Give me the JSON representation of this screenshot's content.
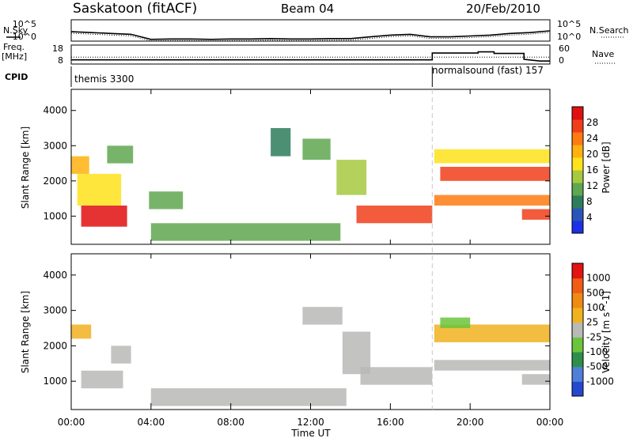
{
  "header": {
    "station": "Saskatoon (fitACF)",
    "beam": "Beam 04",
    "date": "20/Feb/2010"
  },
  "summary_panels": {
    "nsky": {
      "label": "N.Sky",
      "ticks": [
        "10^5",
        "10^0"
      ]
    },
    "nsearch": {
      "label": "N.Search",
      "ticks": [
        "10^5",
        "10^0"
      ]
    },
    "freq": {
      "label_line1": "Freq.",
      "label_line2": "[MHz]",
      "ticks": [
        "18",
        "8"
      ]
    },
    "nave": {
      "label": "Nave",
      "ticks": [
        "60",
        "0"
      ]
    },
    "cpid": {
      "label": "CPID",
      "segments": [
        {
          "name": "themis 3300",
          "start_hour": 0,
          "end_hour": 18.1
        },
        {
          "name": "normalsound (fast) 157",
          "start_hour": 18.1,
          "end_hour": 24
        }
      ]
    }
  },
  "axes": {
    "xlabel": "Time UT",
    "x_ticks": [
      "00:00",
      "04:00",
      "08:00",
      "12:00",
      "16:00",
      "20:00",
      "00:00"
    ],
    "ylabel": "Slant Range [km]",
    "y_ticks": [
      "1000",
      "2000",
      "3000",
      "4000"
    ]
  },
  "colorbars": {
    "power": {
      "label": "Power [dB]",
      "ticks": [
        "4",
        "8",
        "12",
        "16",
        "20",
        "24",
        "28"
      ],
      "colors": [
        "#1d2fe6",
        "#2a56b8",
        "#2d7d5c",
        "#5fa750",
        "#a6c93f",
        "#ffe21a",
        "#ffb10f",
        "#ff7b12",
        "#f03e1a",
        "#e00f10"
      ]
    },
    "velocity": {
      "label": "Velocity [m s^-1]",
      "ticks": [
        "1000",
        "500",
        "100",
        "25",
        "-25",
        "-100",
        "-500",
        "-1000"
      ],
      "colors": [
        "#2548cf",
        "#4f7fd6",
        "#2e8f4a",
        "#6cc43c",
        "#b9b9b6",
        "#f0b21e",
        "#ef8a13",
        "#f05c13",
        "#e21414"
      ]
    }
  },
  "chart_data": [
    {
      "type": "line",
      "title": "N.Sky / N.Search",
      "x_hours": [
        0,
        1,
        2,
        3,
        4,
        5,
        6,
        7,
        8,
        9,
        10,
        11,
        12,
        13,
        14,
        15,
        16,
        17,
        18,
        19,
        20,
        21,
        22,
        23,
        24
      ],
      "log_values": [
        2.2,
        2.0,
        1.8,
        1.6,
        0.4,
        0.5,
        0.5,
        0.4,
        0.5,
        0.5,
        0.6,
        0.5,
        0.5,
        0.6,
        0.6,
        1.0,
        1.4,
        1.6,
        1.0,
        1.0,
        1.2,
        1.4,
        1.8,
        2.0,
        2.4
      ],
      "ylim": [
        0,
        5
      ]
    },
    {
      "type": "line",
      "title": "Freq. / Nave",
      "x_hours": [
        0,
        18.1,
        18.1,
        20.4,
        20.4,
        21.2,
        21.2,
        22.7,
        22.7,
        23.5,
        24
      ],
      "freq_mhz": [
        10.2,
        10.2,
        13.8,
        13.8,
        14.4,
        14.4,
        13.6,
        13.6,
        10.5,
        9.6,
        9.6
      ],
      "nave_x_hours": [
        0,
        24
      ],
      "nave_values": [
        22,
        22
      ],
      "freq_ylim": [
        8,
        18
      ]
    },
    {
      "type": "heatmap",
      "title": "Power [dB]",
      "xlim_hours": [
        0,
        24
      ],
      "ylim_km": [
        200,
        4600
      ],
      "zlim": [
        0,
        30
      ],
      "regions": [
        {
          "x_hours": [
            0.0,
            0.9
          ],
          "y_km": [
            2200,
            2700
          ],
          "value": 18
        },
        {
          "x_hours": [
            0.5,
            2.8
          ],
          "y_km": [
            700,
            1300
          ],
          "value": 28
        },
        {
          "x_hours": [
            0.3,
            2.5
          ],
          "y_km": [
            1300,
            2200
          ],
          "value": 17
        },
        {
          "x_hours": [
            1.8,
            3.1
          ],
          "y_km": [
            2500,
            3000
          ],
          "value": 9
        },
        {
          "x_hours": [
            3.9,
            5.6
          ],
          "y_km": [
            1200,
            1700
          ],
          "value": 10
        },
        {
          "x_hours": [
            4.0,
            13.5
          ],
          "y_km": [
            300,
            800
          ],
          "value": 11
        },
        {
          "x_hours": [
            10.0,
            11.0
          ],
          "y_km": [
            2700,
            3500
          ],
          "value": 7
        },
        {
          "x_hours": [
            11.6,
            13.0
          ],
          "y_km": [
            2600,
            3200
          ],
          "value": 9
        },
        {
          "x_hours": [
            13.3,
            14.8
          ],
          "y_km": [
            1600,
            2600
          ],
          "value": 13
        },
        {
          "x_hours": [
            14.3,
            18.1
          ],
          "y_km": [
            800,
            1300
          ],
          "value": 24
        },
        {
          "x_hours": [
            18.2,
            24.0
          ],
          "y_km": [
            2500,
            2900
          ],
          "value": 16
        },
        {
          "x_hours": [
            18.5,
            24.0
          ],
          "y_km": [
            2000,
            2400
          ],
          "value": 25
        },
        {
          "x_hours": [
            18.2,
            24.0
          ],
          "y_km": [
            1300,
            1600
          ],
          "value": 23
        },
        {
          "x_hours": [
            22.6,
            24.0
          ],
          "y_km": [
            900,
            1200
          ],
          "value": 24
        }
      ]
    },
    {
      "type": "heatmap",
      "title": "Velocity [m s^-1]",
      "xlim_hours": [
        0,
        24
      ],
      "ylim_km": [
        200,
        4600
      ],
      "zlim": [
        -1000,
        1000
      ],
      "regions": [
        {
          "x_hours": [
            0.0,
            1.0
          ],
          "y_km": [
            2200,
            2600
          ],
          "value": -200
        },
        {
          "x_hours": [
            0.5,
            2.6
          ],
          "y_km": [
            800,
            1300
          ],
          "value": 0
        },
        {
          "x_hours": [
            2.0,
            3.0
          ],
          "y_km": [
            1500,
            2000
          ],
          "value": -60
        },
        {
          "x_hours": [
            4.0,
            13.8
          ],
          "y_km": [
            300,
            800
          ],
          "value": 0
        },
        {
          "x_hours": [
            11.6,
            13.6
          ],
          "y_km": [
            2600,
            3100
          ],
          "value": 0
        },
        {
          "x_hours": [
            13.6,
            15.0
          ],
          "y_km": [
            1200,
            2400
          ],
          "value": 0
        },
        {
          "x_hours": [
            14.5,
            18.1
          ],
          "y_km": [
            900,
            1400
          ],
          "value": 0
        },
        {
          "x_hours": [
            18.2,
            24.0
          ],
          "y_km": [
            2100,
            2600
          ],
          "value": -250
        },
        {
          "x_hours": [
            18.5,
            20.0
          ],
          "y_km": [
            2500,
            2800
          ],
          "value": 300
        },
        {
          "x_hours": [
            18.2,
            24.0
          ],
          "y_km": [
            1300,
            1600
          ],
          "value": 0
        },
        {
          "x_hours": [
            22.6,
            24.0
          ],
          "y_km": [
            900,
            1200
          ],
          "value": 0
        }
      ]
    }
  ]
}
